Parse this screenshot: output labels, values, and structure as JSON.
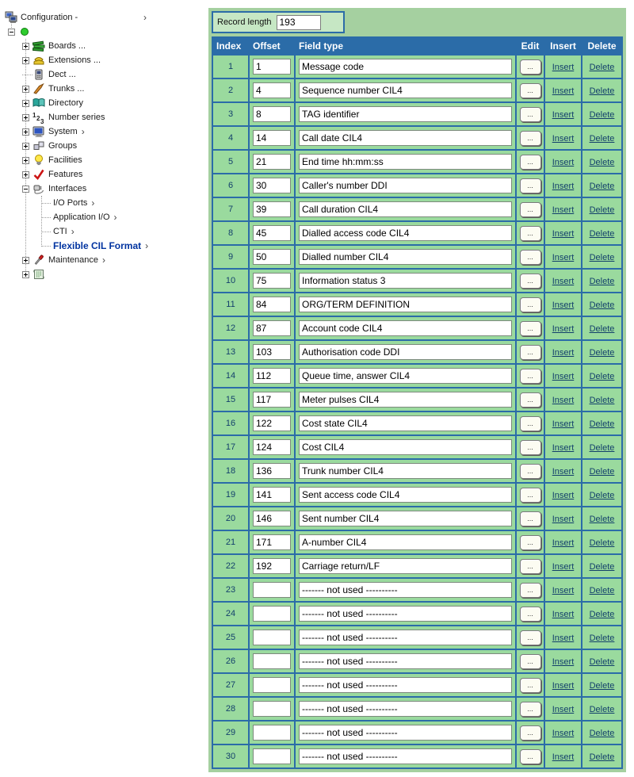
{
  "colors": {
    "header_blue": "#2B6CA8",
    "panel_green": "#A5D0A0",
    "cell_green": "#9ADA9E",
    "record_box_green": "#C6E7C4",
    "link_navy": "#123F6B",
    "selected_item_blue": "#0033A0"
  },
  "sidebar": {
    "arrow_char": "›",
    "items": [
      {
        "label": "Configuration -",
        "icon": "config-network-icon",
        "expander": "none",
        "arrow": true,
        "bold": false,
        "level": 0
      },
      {
        "label": "",
        "icon": "green-dot-icon",
        "expander": "minus",
        "arrow": false,
        "bold": false,
        "level": 1
      },
      {
        "label": "Boards ...",
        "icon": "boards-icon",
        "expander": "plus",
        "arrow": false,
        "bold": false,
        "level": 2
      },
      {
        "label": "Extensions ...",
        "icon": "extensions-phone-icon",
        "expander": "plus",
        "arrow": false,
        "bold": false,
        "level": 2
      },
      {
        "label": "Dect ...",
        "icon": "dect-handset-icon",
        "expander": "none",
        "arrow": false,
        "bold": false,
        "level": 2
      },
      {
        "label": "Trunks ...",
        "icon": "trunks-icon",
        "expander": "plus",
        "arrow": false,
        "bold": false,
        "level": 2
      },
      {
        "label": "Directory",
        "icon": "directory-book-icon",
        "expander": "plus",
        "arrow": false,
        "bold": false,
        "level": 2
      },
      {
        "label": "Number series",
        "icon": "number-series-icon",
        "expander": "plus",
        "arrow": false,
        "bold": false,
        "level": 2
      },
      {
        "label": "System",
        "icon": "system-monitor-icon",
        "expander": "plus",
        "arrow": true,
        "bold": false,
        "level": 2
      },
      {
        "label": "Groups",
        "icon": "groups-icon",
        "expander": "plus",
        "arrow": false,
        "bold": false,
        "level": 2
      },
      {
        "label": "Facilities",
        "icon": "facilities-bulb-icon",
        "expander": "plus",
        "arrow": false,
        "bold": false,
        "level": 2
      },
      {
        "label": "Features",
        "icon": "features-check-icon",
        "expander": "plus",
        "arrow": false,
        "bold": false,
        "level": 2
      },
      {
        "label": "Interfaces",
        "icon": "interfaces-plug-icon",
        "expander": "minus",
        "arrow": false,
        "bold": false,
        "level": 2
      },
      {
        "label": "I/O Ports",
        "icon": "",
        "expander": "none",
        "arrow": true,
        "bold": false,
        "level": 3
      },
      {
        "label": "Application I/O",
        "icon": "",
        "expander": "none",
        "arrow": true,
        "bold": false,
        "level": 3
      },
      {
        "label": "CTI",
        "icon": "",
        "expander": "none",
        "arrow": true,
        "bold": false,
        "level": 3
      },
      {
        "label": "Flexible CIL Format",
        "icon": "",
        "expander": "none",
        "arrow": true,
        "bold": true,
        "level": 3
      },
      {
        "label": "Maintenance",
        "icon": "maintenance-screwdriver-icon",
        "expander": "plus",
        "arrow": true,
        "bold": false,
        "level": 2
      },
      {
        "label": "",
        "icon": "scripts-scroll-icon",
        "expander": "plus",
        "arrow": false,
        "bold": false,
        "level": 2
      }
    ]
  },
  "panel": {
    "record_length_label": "Record length",
    "record_length_value": "193"
  },
  "table": {
    "headers": [
      "Index",
      "Offset",
      "Field type",
      "Edit",
      "Insert",
      "Delete"
    ],
    "edit_button_label": "...",
    "insert_label": "Insert",
    "delete_label": "Delete",
    "rows": [
      {
        "index": 1,
        "offset": "1",
        "field": "Message code"
      },
      {
        "index": 2,
        "offset": "4",
        "field": "Sequence number CIL4"
      },
      {
        "index": 3,
        "offset": "8",
        "field": "TAG identifier"
      },
      {
        "index": 4,
        "offset": "14",
        "field": "Call date CIL4"
      },
      {
        "index": 5,
        "offset": "21",
        "field": "End time hh:mm:ss"
      },
      {
        "index": 6,
        "offset": "30",
        "field": "Caller's number DDI"
      },
      {
        "index": 7,
        "offset": "39",
        "field": "Call duration CIL4"
      },
      {
        "index": 8,
        "offset": "45",
        "field": "Dialled access code CIL4"
      },
      {
        "index": 9,
        "offset": "50",
        "field": "Dialled number CIL4"
      },
      {
        "index": 10,
        "offset": "75",
        "field": "Information status 3"
      },
      {
        "index": 11,
        "offset": "84",
        "field": "ORG/TERM DEFINITION"
      },
      {
        "index": 12,
        "offset": "87",
        "field": "Account code CIL4"
      },
      {
        "index": 13,
        "offset": "103",
        "field": "Authorisation code DDI"
      },
      {
        "index": 14,
        "offset": "112",
        "field": "Queue time, answer CIL4"
      },
      {
        "index": 15,
        "offset": "117",
        "field": "Meter pulses CIL4"
      },
      {
        "index": 16,
        "offset": "122",
        "field": "Cost state CIL4"
      },
      {
        "index": 17,
        "offset": "124",
        "field": "Cost CIL4"
      },
      {
        "index": 18,
        "offset": "136",
        "field": "Trunk number CIL4"
      },
      {
        "index": 19,
        "offset": "141",
        "field": "Sent access code CIL4"
      },
      {
        "index": 20,
        "offset": "146",
        "field": "Sent number CIL4"
      },
      {
        "index": 21,
        "offset": "171",
        "field": "A-number CIL4"
      },
      {
        "index": 22,
        "offset": "192",
        "field": "Carriage return/LF"
      },
      {
        "index": 23,
        "offset": "",
        "field": "------- not used ----------"
      },
      {
        "index": 24,
        "offset": "",
        "field": "------- not used ----------"
      },
      {
        "index": 25,
        "offset": "",
        "field": "------- not used ----------"
      },
      {
        "index": 26,
        "offset": "",
        "field": "------- not used ----------"
      },
      {
        "index": 27,
        "offset": "",
        "field": "------- not used ----------"
      },
      {
        "index": 28,
        "offset": "",
        "field": "------- not used ----------"
      },
      {
        "index": 29,
        "offset": "",
        "field": "------- not used ----------"
      },
      {
        "index": 30,
        "offset": "",
        "field": "------- not used ----------"
      }
    ]
  }
}
